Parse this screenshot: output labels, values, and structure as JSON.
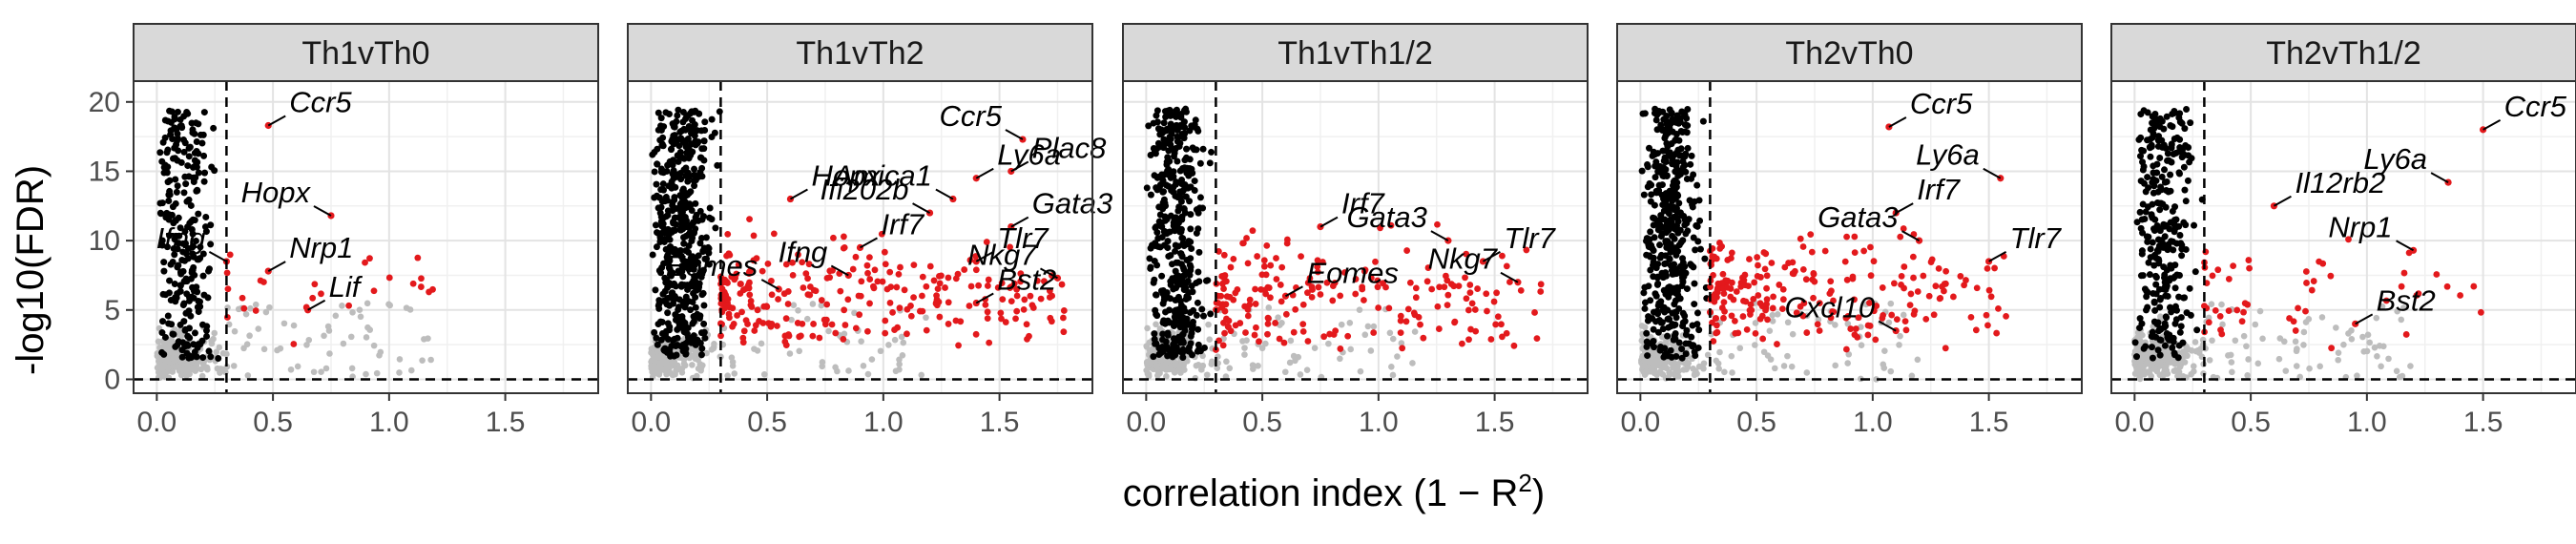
{
  "chart_data": {
    "type": "scatter",
    "xlabel_main": "correlation index (1 − R",
    "xlabel_sup": "2",
    "xlabel_close": ")",
    "ylabel": "-log10(FDR)",
    "xlim": [
      -0.1,
      1.9
    ],
    "ylim": [
      -1,
      21.5
    ],
    "x_ticks": [
      "0.0",
      "0.5",
      "1.0",
      "1.5"
    ],
    "x_tick_values": [
      0,
      0.5,
      1.0,
      1.5
    ],
    "y_ticks": [
      "0",
      "5",
      "10",
      "15",
      "20"
    ],
    "y_tick_values": [
      0,
      5,
      10,
      15,
      20
    ],
    "x_threshold": 0.3,
    "y_threshold": 0,
    "grid": true,
    "colors": {
      "significant": "#e3191c",
      "correlated": "#000000",
      "nonsignificant": "#bdbdbd",
      "strip": "#d9d9d9"
    },
    "panels": [
      {
        "title": "Th1vTh0",
        "density": {
          "black": 260,
          "red": 25,
          "grey": 240,
          "black_xmax": 0.32,
          "red_xmax": 1.2
        },
        "genes": [
          {
            "name": "Ccr5",
            "x": 0.48,
            "y": 18.3
          },
          {
            "name": "Hopx",
            "x": 0.75,
            "y": 11.8
          },
          {
            "name": "Nrp1",
            "x": 0.48,
            "y": 7.8
          },
          {
            "name": "Ifng",
            "x": 0.3,
            "y": 8.5
          },
          {
            "name": "Lif",
            "x": 0.65,
            "y": 5.0
          }
        ]
      },
      {
        "title": "Th1vTh2",
        "density": {
          "black": 480,
          "red": 260,
          "grey": 200,
          "black_xmax": 0.32,
          "red_xmax": 1.8
        },
        "genes": [
          {
            "name": "Ly6a",
            "x": 1.4,
            "y": 14.5
          },
          {
            "name": "Ccr5",
            "x": 1.6,
            "y": 17.3
          },
          {
            "name": "Plac8",
            "x": 1.55,
            "y": 15.0
          },
          {
            "name": "Ifi202b",
            "x": 1.2,
            "y": 12.0
          },
          {
            "name": "Hopx",
            "x": 0.6,
            "y": 13.0
          },
          {
            "name": "Amica1",
            "x": 1.3,
            "y": 13.0
          },
          {
            "name": "Gata3",
            "x": 1.55,
            "y": 11.0
          },
          {
            "name": "Ifng",
            "x": 0.85,
            "y": 7.5
          },
          {
            "name": "Irf7",
            "x": 0.9,
            "y": 9.5
          },
          {
            "name": "Eomes",
            "x": 0.55,
            "y": 6.5
          },
          {
            "name": "Tlr7",
            "x": 1.4,
            "y": 8.5
          },
          {
            "name": "Nkg7",
            "x": 1.75,
            "y": 7.3
          },
          {
            "name": "Bst2",
            "x": 1.4,
            "y": 5.5
          }
        ]
      },
      {
        "title": "Th1vTh1/2",
        "density": {
          "black": 420,
          "red": 200,
          "grey": 220,
          "black_xmax": 0.32,
          "red_xmax": 1.7
        },
        "genes": [
          {
            "name": "Irf7",
            "x": 0.75,
            "y": 11.0
          },
          {
            "name": "Gata3",
            "x": 1.3,
            "y": 10.0
          },
          {
            "name": "Tlr7",
            "x": 1.45,
            "y": 8.5
          },
          {
            "name": "Nkg7",
            "x": 1.6,
            "y": 7.0
          },
          {
            "name": "Eomes",
            "x": 0.6,
            "y": 6.0
          }
        ]
      },
      {
        "title": "Th2vTh0",
        "density": {
          "black": 420,
          "red": 220,
          "grey": 230,
          "black_xmax": 0.32,
          "red_xmax": 1.6
        },
        "genes": [
          {
            "name": "Ccr5",
            "x": 1.07,
            "y": 18.2
          },
          {
            "name": "Ly6a",
            "x": 1.55,
            "y": 14.5
          },
          {
            "name": "Irf7",
            "x": 1.1,
            "y": 12.0
          },
          {
            "name": "Gata3",
            "x": 1.2,
            "y": 10.0
          },
          {
            "name": "Tlr7",
            "x": 1.5,
            "y": 8.5
          },
          {
            "name": "Cxcl10",
            "x": 1.1,
            "y": 3.5
          }
        ]
      },
      {
        "title": "Th2vTh1/2",
        "density": {
          "black": 300,
          "red": 50,
          "grey": 260,
          "black_xmax": 0.32,
          "red_xmax": 1.5
        },
        "genes": [
          {
            "name": "Ccr5",
            "x": 1.5,
            "y": 18.0
          },
          {
            "name": "Ly6a",
            "x": 1.35,
            "y": 14.2
          },
          {
            "name": "Il12rb2",
            "x": 0.6,
            "y": 12.5
          },
          {
            "name": "Nrp1",
            "x": 1.2,
            "y": 9.3
          },
          {
            "name": "Bst2",
            "x": 0.95,
            "y": 4.0
          }
        ]
      }
    ]
  }
}
